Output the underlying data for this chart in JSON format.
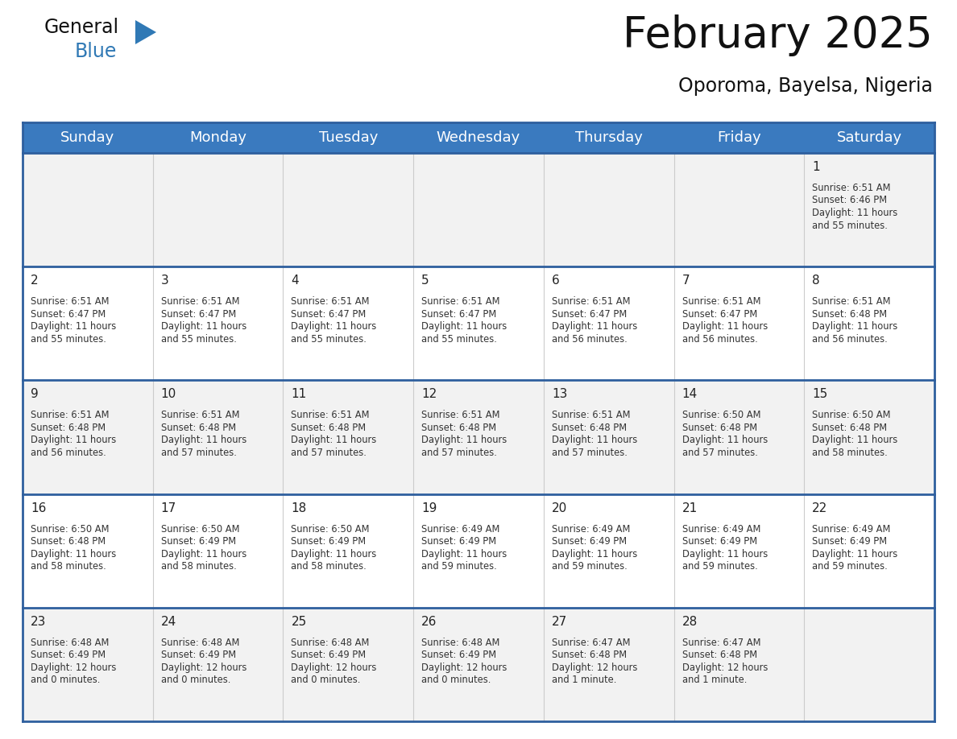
{
  "title": "February 2025",
  "subtitle": "Oporoma, Bayelsa, Nigeria",
  "header_color": "#3a7abf",
  "header_text_color": "#ffffff",
  "row_bg_odd": "#f2f2f2",
  "row_bg_even": "#ffffff",
  "separator_color": "#2e5f9e",
  "vcol_color": "#cccccc",
  "day_names": [
    "Sunday",
    "Monday",
    "Tuesday",
    "Wednesday",
    "Thursday",
    "Friday",
    "Saturday"
  ],
  "title_fontsize": 38,
  "subtitle_fontsize": 17,
  "day_header_fontsize": 13,
  "cell_number_fontsize": 11,
  "cell_text_fontsize": 8.3,
  "logo_general_color": "#111111",
  "logo_blue_color": "#3079b5",
  "logo_triangle_color": "#3079b5",
  "calendar": [
    [
      null,
      null,
      null,
      null,
      null,
      null,
      {
        "day": 1,
        "sunrise": "6:51 AM",
        "sunset": "6:46 PM",
        "daylight_line1": "Daylight: 11 hours",
        "daylight_line2": "and 55 minutes."
      }
    ],
    [
      {
        "day": 2,
        "sunrise": "6:51 AM",
        "sunset": "6:47 PM",
        "daylight_line1": "Daylight: 11 hours",
        "daylight_line2": "and 55 minutes."
      },
      {
        "day": 3,
        "sunrise": "6:51 AM",
        "sunset": "6:47 PM",
        "daylight_line1": "Daylight: 11 hours",
        "daylight_line2": "and 55 minutes."
      },
      {
        "day": 4,
        "sunrise": "6:51 AM",
        "sunset": "6:47 PM",
        "daylight_line1": "Daylight: 11 hours",
        "daylight_line2": "and 55 minutes."
      },
      {
        "day": 5,
        "sunrise": "6:51 AM",
        "sunset": "6:47 PM",
        "daylight_line1": "Daylight: 11 hours",
        "daylight_line2": "and 55 minutes."
      },
      {
        "day": 6,
        "sunrise": "6:51 AM",
        "sunset": "6:47 PM",
        "daylight_line1": "Daylight: 11 hours",
        "daylight_line2": "and 56 minutes."
      },
      {
        "day": 7,
        "sunrise": "6:51 AM",
        "sunset": "6:47 PM",
        "daylight_line1": "Daylight: 11 hours",
        "daylight_line2": "and 56 minutes."
      },
      {
        "day": 8,
        "sunrise": "6:51 AM",
        "sunset": "6:48 PM",
        "daylight_line1": "Daylight: 11 hours",
        "daylight_line2": "and 56 minutes."
      }
    ],
    [
      {
        "day": 9,
        "sunrise": "6:51 AM",
        "sunset": "6:48 PM",
        "daylight_line1": "Daylight: 11 hours",
        "daylight_line2": "and 56 minutes."
      },
      {
        "day": 10,
        "sunrise": "6:51 AM",
        "sunset": "6:48 PM",
        "daylight_line1": "Daylight: 11 hours",
        "daylight_line2": "and 57 minutes."
      },
      {
        "day": 11,
        "sunrise": "6:51 AM",
        "sunset": "6:48 PM",
        "daylight_line1": "Daylight: 11 hours",
        "daylight_line2": "and 57 minutes."
      },
      {
        "day": 12,
        "sunrise": "6:51 AM",
        "sunset": "6:48 PM",
        "daylight_line1": "Daylight: 11 hours",
        "daylight_line2": "and 57 minutes."
      },
      {
        "day": 13,
        "sunrise": "6:51 AM",
        "sunset": "6:48 PM",
        "daylight_line1": "Daylight: 11 hours",
        "daylight_line2": "and 57 minutes."
      },
      {
        "day": 14,
        "sunrise": "6:50 AM",
        "sunset": "6:48 PM",
        "daylight_line1": "Daylight: 11 hours",
        "daylight_line2": "and 57 minutes."
      },
      {
        "day": 15,
        "sunrise": "6:50 AM",
        "sunset": "6:48 PM",
        "daylight_line1": "Daylight: 11 hours",
        "daylight_line2": "and 58 minutes."
      }
    ],
    [
      {
        "day": 16,
        "sunrise": "6:50 AM",
        "sunset": "6:48 PM",
        "daylight_line1": "Daylight: 11 hours",
        "daylight_line2": "and 58 minutes."
      },
      {
        "day": 17,
        "sunrise": "6:50 AM",
        "sunset": "6:49 PM",
        "daylight_line1": "Daylight: 11 hours",
        "daylight_line2": "and 58 minutes."
      },
      {
        "day": 18,
        "sunrise": "6:50 AM",
        "sunset": "6:49 PM",
        "daylight_line1": "Daylight: 11 hours",
        "daylight_line2": "and 58 minutes."
      },
      {
        "day": 19,
        "sunrise": "6:49 AM",
        "sunset": "6:49 PM",
        "daylight_line1": "Daylight: 11 hours",
        "daylight_line2": "and 59 minutes."
      },
      {
        "day": 20,
        "sunrise": "6:49 AM",
        "sunset": "6:49 PM",
        "daylight_line1": "Daylight: 11 hours",
        "daylight_line2": "and 59 minutes."
      },
      {
        "day": 21,
        "sunrise": "6:49 AM",
        "sunset": "6:49 PM",
        "daylight_line1": "Daylight: 11 hours",
        "daylight_line2": "and 59 minutes."
      },
      {
        "day": 22,
        "sunrise": "6:49 AM",
        "sunset": "6:49 PM",
        "daylight_line1": "Daylight: 11 hours",
        "daylight_line2": "and 59 minutes."
      }
    ],
    [
      {
        "day": 23,
        "sunrise": "6:48 AM",
        "sunset": "6:49 PM",
        "daylight_line1": "Daylight: 12 hours",
        "daylight_line2": "and 0 minutes."
      },
      {
        "day": 24,
        "sunrise": "6:48 AM",
        "sunset": "6:49 PM",
        "daylight_line1": "Daylight: 12 hours",
        "daylight_line2": "and 0 minutes."
      },
      {
        "day": 25,
        "sunrise": "6:48 AM",
        "sunset": "6:49 PM",
        "daylight_line1": "Daylight: 12 hours",
        "daylight_line2": "and 0 minutes."
      },
      {
        "day": 26,
        "sunrise": "6:48 AM",
        "sunset": "6:49 PM",
        "daylight_line1": "Daylight: 12 hours",
        "daylight_line2": "and 0 minutes."
      },
      {
        "day": 27,
        "sunrise": "6:47 AM",
        "sunset": "6:48 PM",
        "daylight_line1": "Daylight: 12 hours",
        "daylight_line2": "and 1 minute."
      },
      {
        "day": 28,
        "sunrise": "6:47 AM",
        "sunset": "6:48 PM",
        "daylight_line1": "Daylight: 12 hours",
        "daylight_line2": "and 1 minute."
      },
      null
    ]
  ]
}
